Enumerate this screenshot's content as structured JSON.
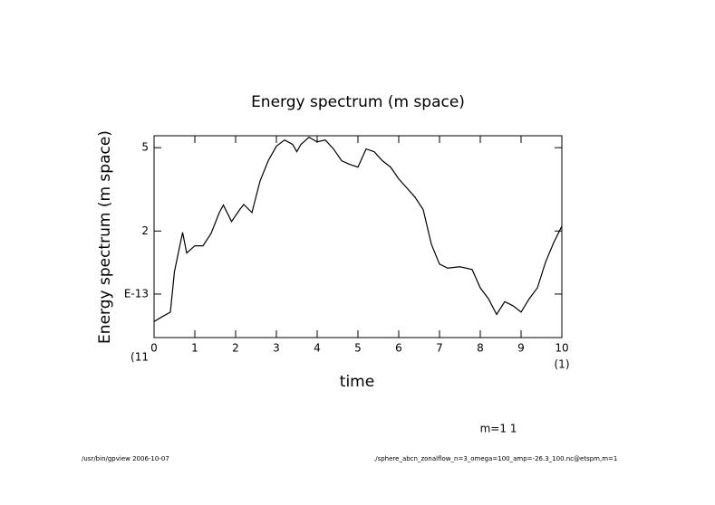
{
  "chart_data": {
    "type": "line",
    "title": "Energy spectrum (m space)",
    "y_label": "Energy spectrum (m space)",
    "x_label": "time",
    "x_note": "(11",
    "x_note_right": "(1)",
    "annotation": "m=1 1",
    "footer_left": "/usr/bin/gpview  2006-10-07",
    "footer_right": "./sphere_abcn_zonalflow_n=3_omega=100_amp=-26.3_100.nc@etspm,m=1",
    "x": [
      0,
      0.2,
      0.4,
      0.5,
      0.7,
      0.8,
      1.0,
      1.2,
      1.4,
      1.6,
      1.7,
      1.9,
      2.1,
      2.2,
      2.4,
      2.6,
      2.8,
      3.0,
      3.2,
      3.4,
      3.5,
      3.6,
      3.8,
      4.0,
      4.2,
      4.4,
      4.6,
      4.8,
      5.0,
      5.2,
      5.4,
      5.6,
      5.8,
      6.0,
      6.2,
      6.4,
      6.6,
      6.8,
      7.0,
      7.2,
      7.5,
      7.8,
      8.0,
      8.2,
      8.4,
      8.6,
      8.8,
      9.0,
      9.2,
      9.4,
      9.6,
      9.8,
      10
    ],
    "series": [
      {
        "color": "#000000",
        "values": [
          0.74,
          0.78,
          0.82,
          1.28,
          1.97,
          1.57,
          1.7,
          1.7,
          1.95,
          2.45,
          2.66,
          2.22,
          2.53,
          2.68,
          2.45,
          3.47,
          4.33,
          5.08,
          5.44,
          5.18,
          4.78,
          5.18,
          5.61,
          5.33,
          5.44,
          4.93,
          4.33,
          4.16,
          4.04,
          4.93,
          4.78,
          4.33,
          4.04,
          3.55,
          3.21,
          2.9,
          2.53,
          1.73,
          1.39,
          1.33,
          1.35,
          1.31,
          1.07,
          0.95,
          0.8,
          0.92,
          0.88,
          0.82,
          0.95,
          1.07,
          1.42,
          1.76,
          2.11
        ]
      }
    ],
    "xlim": [
      0,
      10
    ],
    "xticks": [
      0,
      1,
      2,
      3,
      4,
      5,
      6,
      7,
      8,
      9,
      10
    ],
    "ylim": [
      0.62,
      5.7
    ],
    "log_y": true,
    "yticks": [
      5,
      2,
      {
        "value": 1,
        "label": "E-13"
      }
    ]
  }
}
